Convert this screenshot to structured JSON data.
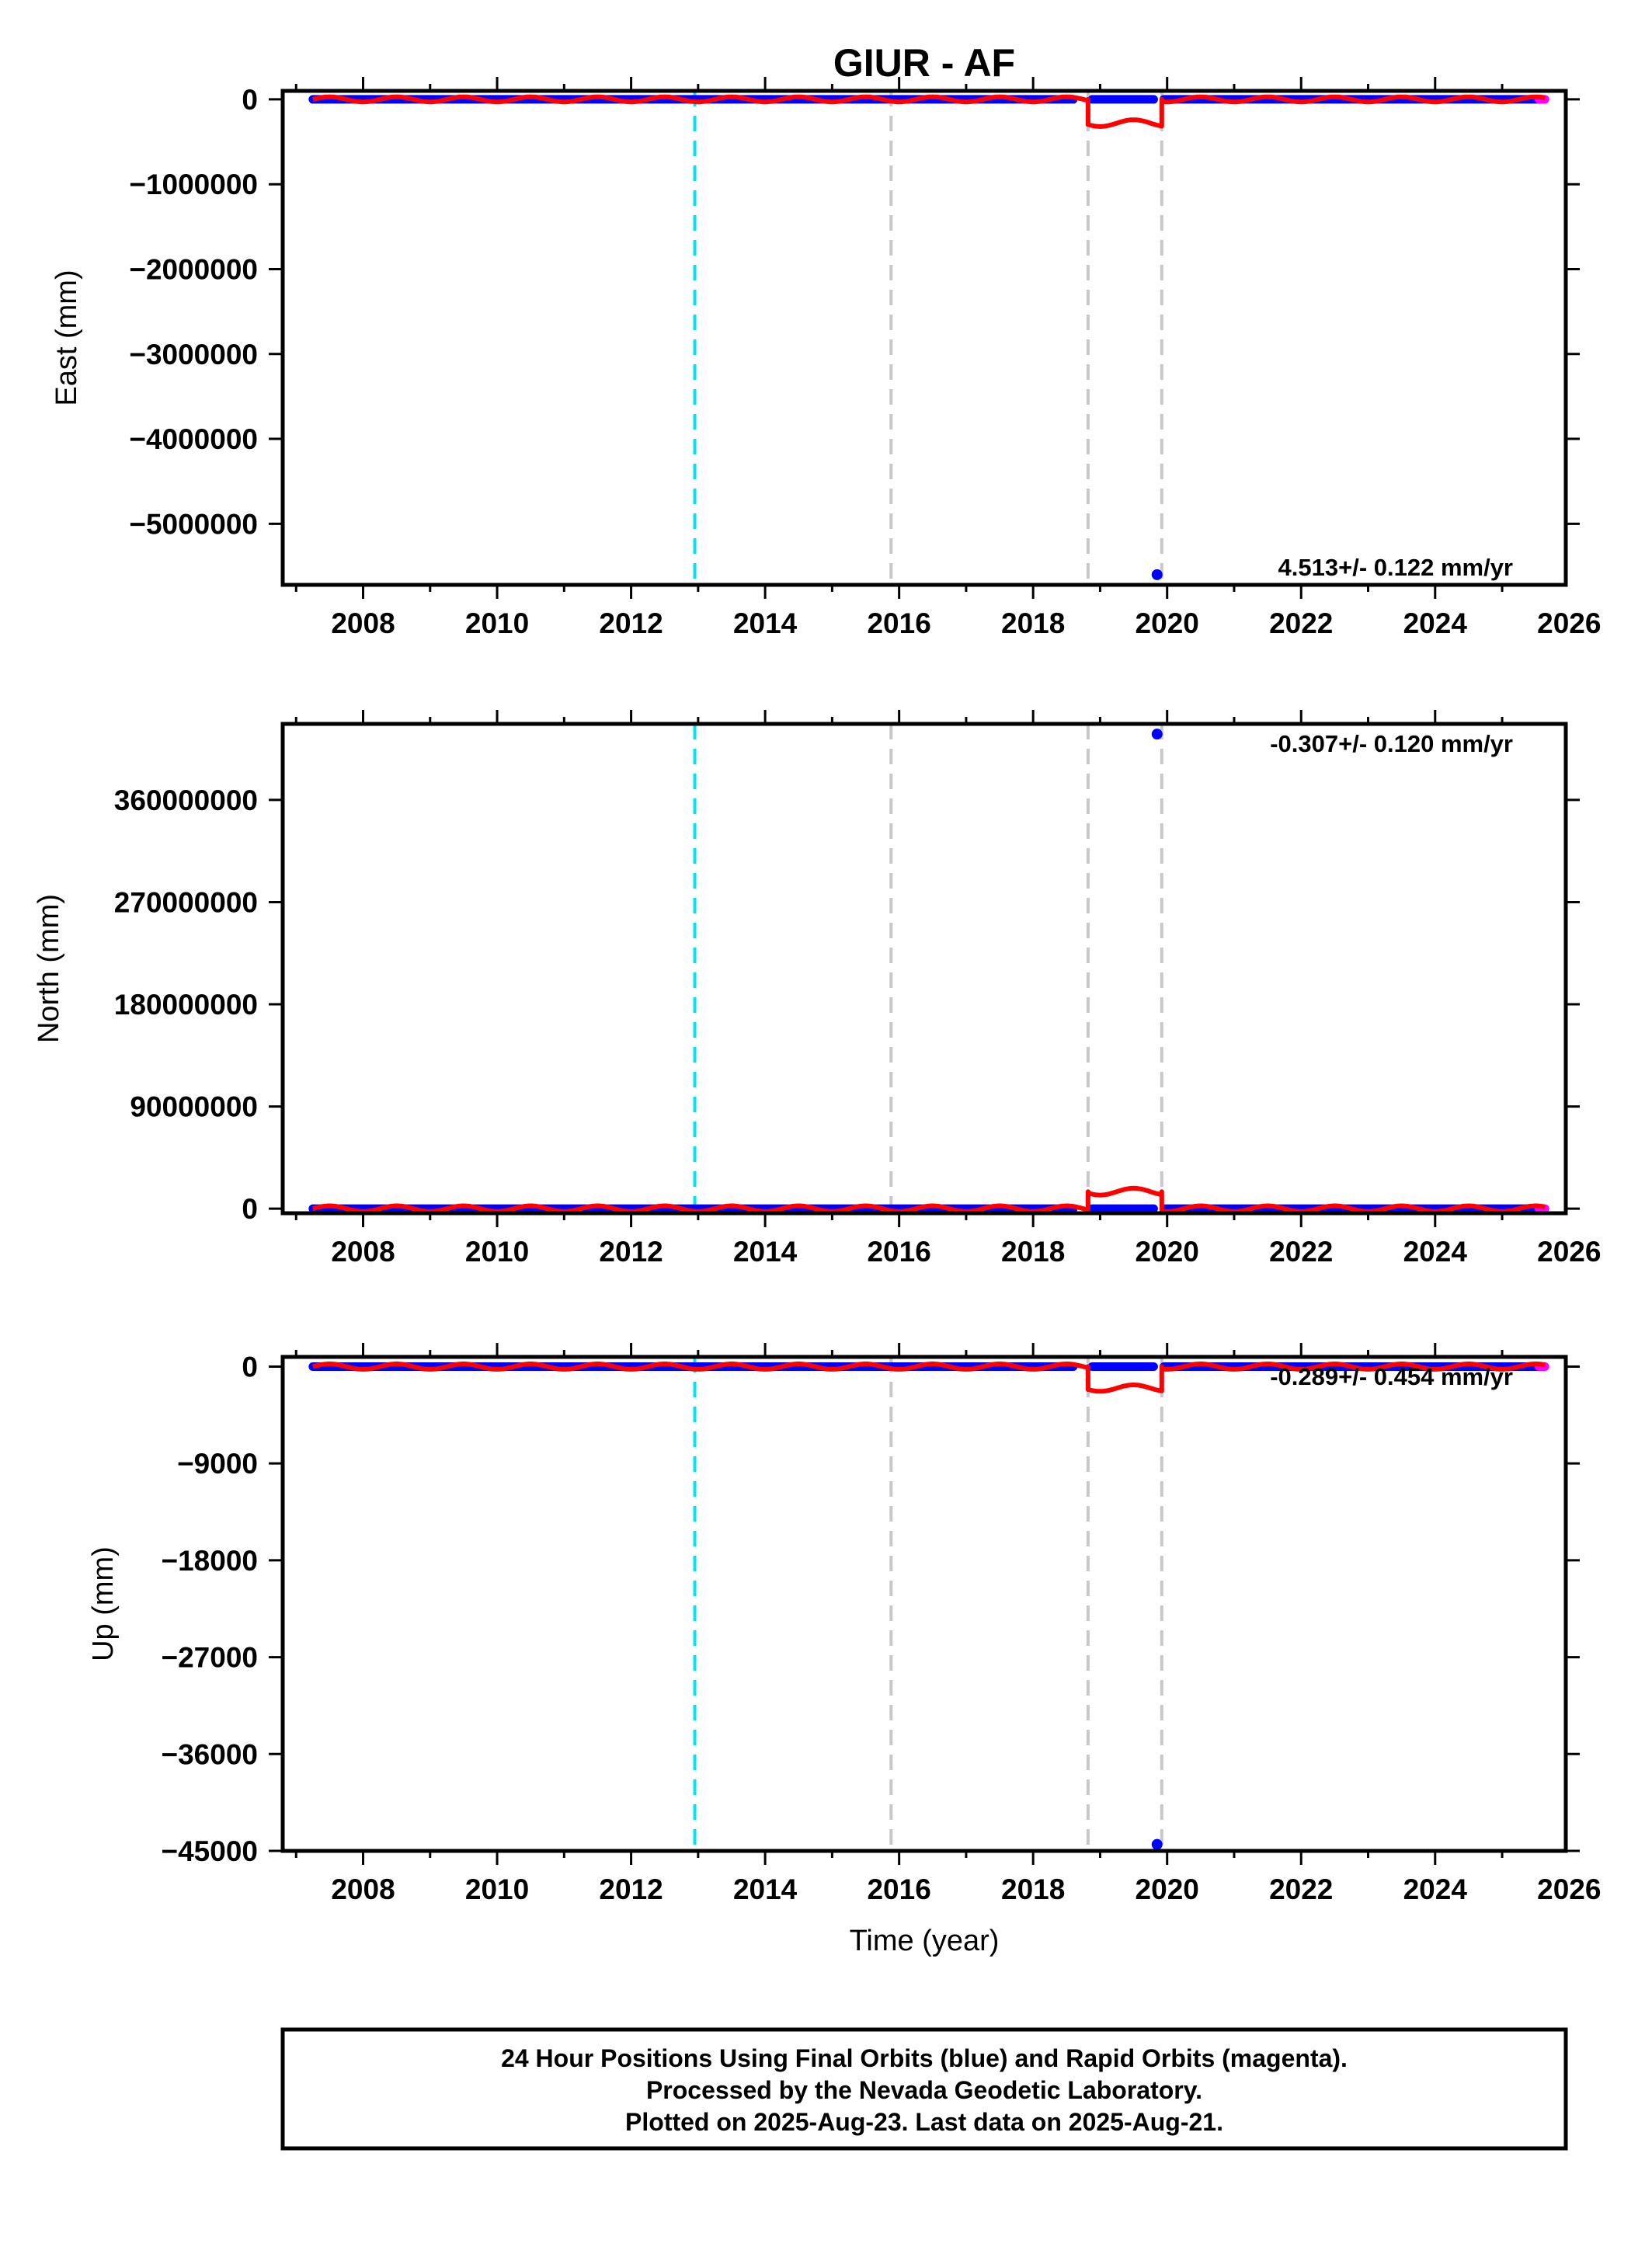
{
  "chart_data": [
    {
      "type": "scatter",
      "title": "GIUR - AF",
      "ylabel": "East (mm)",
      "xlabel": "",
      "xlim": [
        2006.8,
        2025.95
      ],
      "ylim": [
        -5720000,
        100000
      ],
      "xticks": [
        2008,
        2010,
        2012,
        2014,
        2016,
        2018,
        2020,
        2022,
        2024,
        2026
      ],
      "yticks": [
        0,
        -1000000,
        -2000000,
        -3000000,
        -4000000,
        -5000000
      ],
      "ytick_labels": [
        "0",
        "−1000000",
        "−2000000",
        "−3000000",
        "−4000000",
        "−5000000"
      ],
      "rate_text": "4.513+/- 0.122 mm/yr",
      "rate_position": "bottom-right",
      "grid": false,
      "vertical_lines": [
        {
          "x": 2012.95,
          "color": "#00e5ee"
        },
        {
          "x": 2015.88,
          "color": "#c8c8c8"
        },
        {
          "x": 2018.82,
          "color": "#c8c8c8"
        },
        {
          "x": 2019.92,
          "color": "#c8c8c8"
        }
      ],
      "series": [
        {
          "name": "Final Orbits",
          "color": "#0000ff",
          "segments": [
            {
              "x_start": 2007.25,
              "x_end": 2018.6,
              "y": 0
            },
            {
              "x_start": 2018.88,
              "x_end": 2019.8,
              "y": 0
            },
            {
              "x_start": 2019.95,
              "x_end": 2025.6,
              "y": 0
            }
          ],
          "outliers": [
            {
              "x": 2019.85,
              "y": -5600000
            }
          ]
        },
        {
          "name": "Rapid Orbits",
          "color": "#ff00ff",
          "segments": [
            {
              "x_start": 2025.55,
              "x_end": 2025.64,
              "y": 0
            }
          ]
        },
        {
          "name": "Model",
          "color": "#ff0000",
          "x": [
            2007.25,
            2018.3,
            2018.82,
            2018.82,
            2019.92,
            2019.92,
            2025.64
          ],
          "y": [
            0,
            0,
            0,
            -280000,
            -280000,
            0,
            0
          ],
          "wiggle_amplitude": 30000,
          "wiggle_offset_amplitude": 40000
        }
      ]
    },
    {
      "type": "scatter",
      "ylabel": "North (mm)",
      "xlabel": "",
      "xlim": [
        2006.8,
        2025.95
      ],
      "ylim": [
        -4000000,
        427000000
      ],
      "xticks": [
        2008,
        2010,
        2012,
        2014,
        2016,
        2018,
        2020,
        2022,
        2024,
        2026
      ],
      "yticks": [
        0,
        90000000,
        180000000,
        270000000,
        360000000
      ],
      "ytick_labels": [
        "0",
        "90000000",
        "180000000",
        "270000000",
        "360000000"
      ],
      "rate_text": "-0.307+/- 0.120 mm/yr",
      "rate_position": "top-right",
      "grid": false,
      "vertical_lines": [
        {
          "x": 2012.95,
          "color": "#00e5ee"
        },
        {
          "x": 2015.88,
          "color": "#c8c8c8"
        },
        {
          "x": 2018.82,
          "color": "#c8c8c8"
        },
        {
          "x": 2019.92,
          "color": "#c8c8c8"
        }
      ],
      "series": [
        {
          "name": "Final Orbits",
          "color": "#0000ff",
          "segments": [
            {
              "x_start": 2007.25,
              "x_end": 2018.6,
              "y": 0
            },
            {
              "x_start": 2018.88,
              "x_end": 2019.8,
              "y": 0
            },
            {
              "x_start": 2019.95,
              "x_end": 2025.6,
              "y": 0
            }
          ],
          "outliers": [
            {
              "x": 2019.85,
              "y": 418000000
            }
          ]
        },
        {
          "name": "Rapid Orbits",
          "color": "#ff00ff",
          "segments": [
            {
              "x_start": 2025.55,
              "x_end": 2025.64,
              "y": 0
            }
          ]
        },
        {
          "name": "Model",
          "color": "#ff0000",
          "x": [
            2007.25,
            2018.3,
            2018.82,
            2018.82,
            2019.92,
            2019.92,
            2025.64
          ],
          "y": [
            0,
            0,
            0,
            15000000,
            15000000,
            0,
            0
          ],
          "wiggle_amplitude": 2500000,
          "wiggle_offset_amplitude": 3000000
        }
      ]
    },
    {
      "type": "scatter",
      "ylabel": "Up (mm)",
      "xlabel": "Time (year)",
      "xlim": [
        2006.8,
        2025.95
      ],
      "ylim": [
        -45000,
        900
      ],
      "xticks": [
        2008,
        2010,
        2012,
        2014,
        2016,
        2018,
        2020,
        2022,
        2024,
        2026
      ],
      "yticks": [
        0,
        -9000,
        -18000,
        -27000,
        -36000,
        -45000
      ],
      "ytick_labels": [
        "0",
        "−9000",
        "−18000",
        "−27000",
        "−36000",
        "−45000"
      ],
      "rate_text": "-0.289+/- 0.454 mm/yr",
      "rate_position": "top-right",
      "grid": false,
      "vertical_lines": [
        {
          "x": 2012.95,
          "color": "#00e5ee"
        },
        {
          "x": 2015.88,
          "color": "#c8c8c8"
        },
        {
          "x": 2018.82,
          "color": "#c8c8c8"
        },
        {
          "x": 2019.92,
          "color": "#c8c8c8"
        }
      ],
      "series": [
        {
          "name": "Final Orbits",
          "color": "#0000ff",
          "segments": [
            {
              "x_start": 2007.25,
              "x_end": 2018.6,
              "y": 0
            },
            {
              "x_start": 2018.88,
              "x_end": 2019.8,
              "y": 0
            },
            {
              "x_start": 2019.95,
              "x_end": 2025.6,
              "y": 0
            }
          ],
          "outliers": [
            {
              "x": 2019.85,
              "y": -44400
            }
          ]
        },
        {
          "name": "Rapid Orbits",
          "color": "#ff00ff",
          "segments": [
            {
              "x_start": 2025.55,
              "x_end": 2025.64,
              "y": 0
            }
          ]
        },
        {
          "name": "Model",
          "color": "#ff0000",
          "x": [
            2007.25,
            2018.3,
            2018.82,
            2018.82,
            2019.92,
            2019.92,
            2025.64
          ],
          "y": [
            0,
            0,
            0,
            -2000,
            -2000,
            0,
            0
          ],
          "wiggle_amplitude": 250,
          "wiggle_offset_amplitude": 300
        }
      ]
    }
  ],
  "footer": {
    "line1": "24 Hour Positions Using Final Orbits (blue) and Rapid Orbits (magenta).",
    "line2": "Processed by the Nevada Geodetic Laboratory.",
    "line3": "Plotted on 2025-Aug-23. Last data on 2025-Aug-21."
  }
}
